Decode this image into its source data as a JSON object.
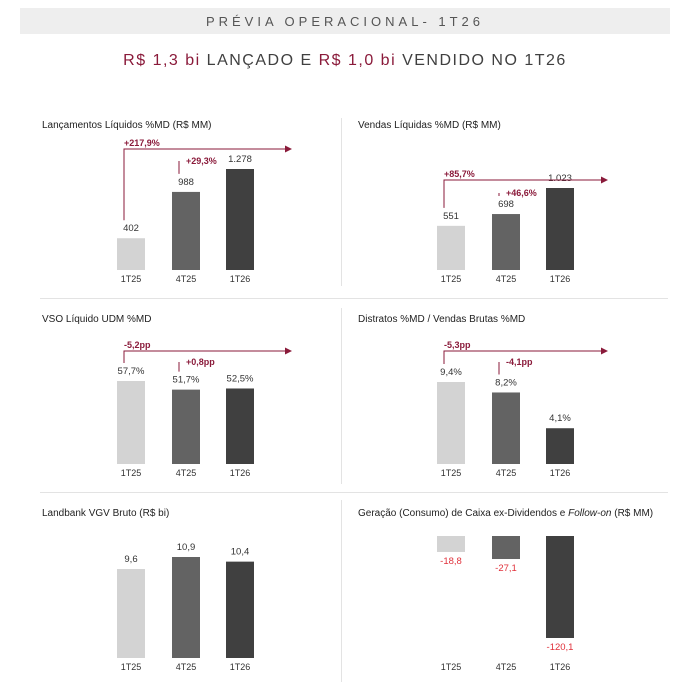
{
  "header": {
    "title": "PRÉVIA OPERACIONAL- 1T26",
    "subtitle": [
      {
        "text": "R$ 1,3 bi",
        "highlight": true
      },
      {
        "text": " LANÇADO E ",
        "highlight": false
      },
      {
        "text": "R$ 1,0 bi",
        "highlight": true
      },
      {
        "text": " VENDIDO NO 1T26",
        "highlight": false
      }
    ]
  },
  "colors": {
    "accent": "#8a1a3a",
    "negative": "#e0303a",
    "bars": [
      "#d3d3d3",
      "#636363",
      "#404040"
    ]
  },
  "chart_data": [
    {
      "type": "bar",
      "title": "Lançamentos Líquidos %MD (R$ MM)",
      "categories": [
        "1T25",
        "4T25",
        "1T26"
      ],
      "values": [
        402,
        988,
        1278
      ],
      "labels": [
        "402",
        "988",
        "1.278"
      ],
      "ylim": [
        0,
        1278
      ],
      "annotations": [
        {
          "text": "+217,9%",
          "from": 0,
          "to": 2
        },
        {
          "text": "+29,3%",
          "from": 1,
          "to": 2
        }
      ]
    },
    {
      "type": "bar",
      "title": "Vendas Líquidas %MD (R$ MM)",
      "categories": [
        "1T25",
        "4T25",
        "1T26"
      ],
      "values": [
        551,
        698,
        1023
      ],
      "labels": [
        "551",
        "698",
        "1.023"
      ],
      "ylim": [
        0,
        1023
      ],
      "annotations": [
        {
          "text": "+85,7%",
          "from": 0,
          "to": 2
        },
        {
          "text": "+46,6%",
          "from": 1,
          "to": 2
        }
      ]
    },
    {
      "type": "bar",
      "title": "VSO Líquido UDM %MD",
      "categories": [
        "1T25",
        "4T25",
        "1T26"
      ],
      "values": [
        57.7,
        51.7,
        52.5
      ],
      "labels": [
        "57,7%",
        "51,7%",
        "52,5%"
      ],
      "ylim": [
        0,
        57.7
      ],
      "annotations": [
        {
          "text": "-5,2pp",
          "from": 0,
          "to": 2
        },
        {
          "text": "+0,8pp",
          "from": 1,
          "to": 2
        }
      ]
    },
    {
      "type": "bar",
      "title": "Distratos %MD / Vendas Brutas %MD",
      "categories": [
        "1T25",
        "4T25",
        "1T26"
      ],
      "values": [
        9.4,
        8.2,
        4.1
      ],
      "labels": [
        "9,4%",
        "8,2%",
        "4,1%"
      ],
      "ylim": [
        0,
        9.4
      ],
      "annotations": [
        {
          "text": "-5,3pp",
          "from": 0,
          "to": 2
        },
        {
          "text": "-4,1pp",
          "from": 1,
          "to": 2
        }
      ]
    },
    {
      "type": "bar",
      "title": "Landbank VGV Bruto (R$ bi)",
      "categories": [
        "1T25",
        "4T25",
        "1T26"
      ],
      "values": [
        9.6,
        10.9,
        10.4
      ],
      "labels": [
        "9,6",
        "10,9",
        "10,4"
      ],
      "ylim": [
        0,
        10.9
      ],
      "annotations": []
    },
    {
      "type": "bar",
      "title_parts": [
        {
          "text": "Geração (Consumo) de Caixa ex-Dividendos e ",
          "italic": false
        },
        {
          "text": "Follow-on",
          "italic": true
        },
        {
          "text": " (R$ MM)",
          "italic": false
        }
      ],
      "categories": [
        "1T25",
        "4T25",
        "1T26"
      ],
      "values": [
        -18.8,
        -27.1,
        -120.1
      ],
      "labels": [
        "-18,8",
        "-27,1",
        "-120,1"
      ],
      "ylim": [
        -120.1,
        0
      ],
      "annotations": []
    }
  ]
}
